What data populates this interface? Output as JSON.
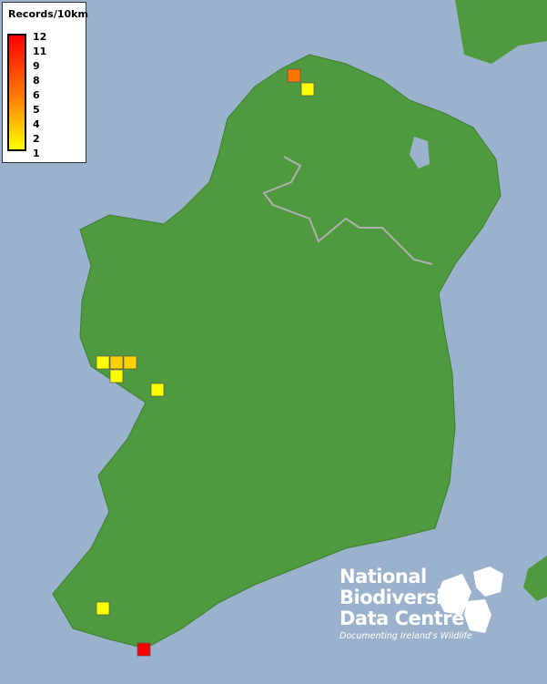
{
  "legend": {
    "title": "Records/10km",
    "labels": [
      "12",
      "11",
      "9",
      "8",
      "6",
      "5",
      "4",
      "2",
      "1"
    ],
    "colors": {
      "max": "#ff0000",
      "mid": "#ff8000",
      "min": "#ffff00"
    }
  },
  "logo": {
    "line1": "National",
    "line2": "Biodiversity",
    "line3": "Data Centre",
    "tagline": "Documenting Ireland's Wildlife"
  },
  "colors": {
    "sea": "#9bb2cc",
    "land": "#4f9a3e",
    "border": "#b0b0b0"
  },
  "records": [
    {
      "value": 7
    },
    {
      "value": 1
    },
    {
      "value": 1
    },
    {
      "value": 3
    },
    {
      "value": 3
    },
    {
      "value": 1
    },
    {
      "value": 1
    },
    {
      "value": 1
    },
    {
      "value": 12
    }
  ]
}
